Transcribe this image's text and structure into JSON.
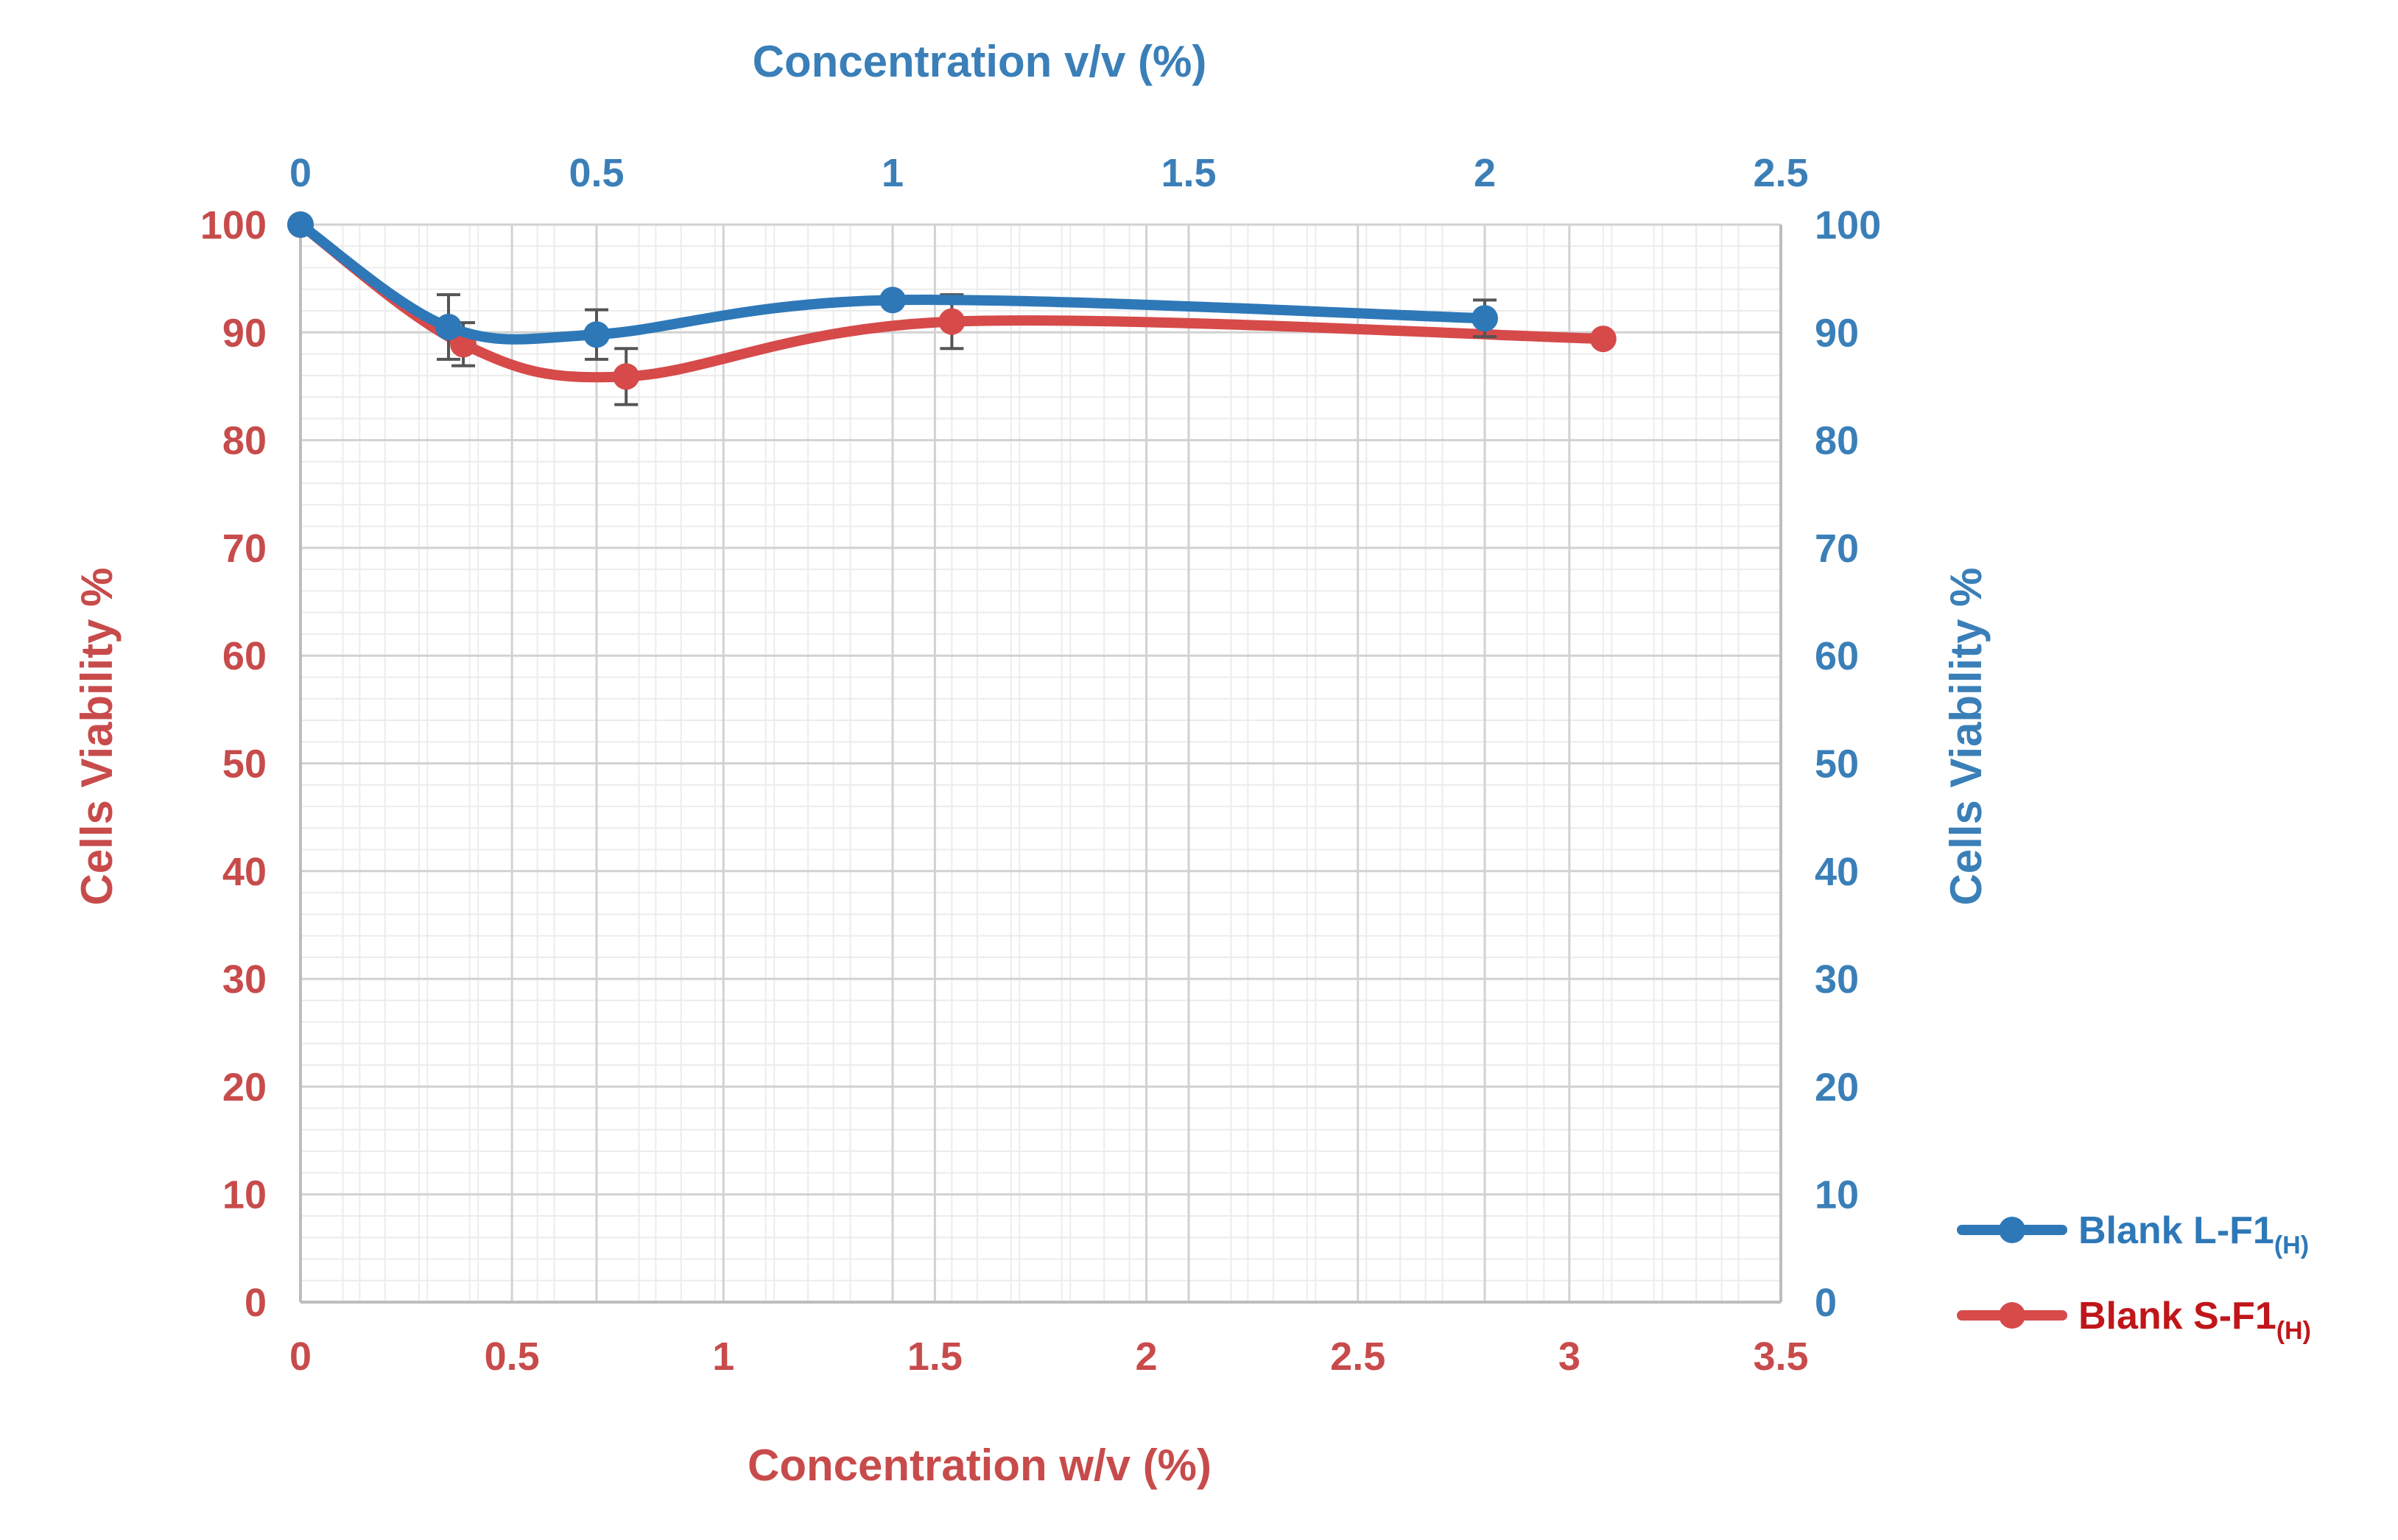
{
  "chart_data": {
    "type": "line",
    "title": "",
    "top_xlabel": "Concentration v/v (%)",
    "bottom_xlabel": "Concentration w/v (%)",
    "left_ylabel": "Cells Viability %",
    "right_ylabel": "Cells Viability %",
    "bottom_x_range": [
      0,
      3.5
    ],
    "top_x_range": [
      0,
      2.5
    ],
    "y_range": [
      0,
      100
    ],
    "bottom_x_ticks": [
      "0",
      "0.5",
      "1",
      "1.5",
      "2",
      "2.5",
      "3",
      "3.5"
    ],
    "top_x_ticks": [
      "0",
      "0.5",
      "1",
      "1.5",
      "2",
      "2.5"
    ],
    "y_ticks": [
      "0",
      "10",
      "20",
      "30",
      "40",
      "50",
      "60",
      "70",
      "80",
      "90",
      "100"
    ],
    "grid": true,
    "legend_position": "bottom-right",
    "series": [
      {
        "name": "Blank L-F1",
        "name_subscript": "(H)",
        "axis": "top",
        "color": "#2e78b8",
        "x": [
          0,
          0.25,
          0.5,
          1,
          2
        ],
        "y": [
          100,
          90.5,
          89.8,
          93,
          91.3
        ],
        "error": [
          0,
          3,
          2.3,
          0,
          1.7
        ]
      },
      {
        "name": "Blank S-F1",
        "name_subscript": "(H)",
        "axis": "bottom",
        "color": "#d64a4a",
        "x": [
          0,
          0.385,
          0.77,
          1.54,
          3.08
        ],
        "y": [
          100,
          88.9,
          85.9,
          91,
          89.4
        ],
        "error": [
          0,
          2,
          2.6,
          2.5,
          0
        ]
      }
    ]
  },
  "colors": {
    "red_axis": "#c84b4b",
    "blue_axis": "#3a7fb8",
    "grid_major": "#d2d2d2",
    "grid_minor": "#ececec"
  }
}
